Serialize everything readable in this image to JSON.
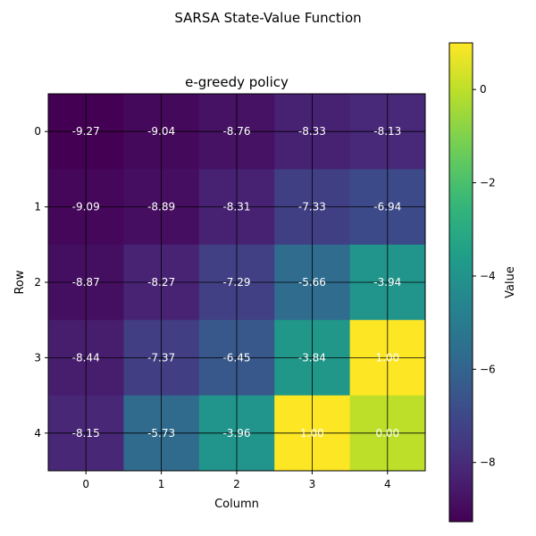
{
  "chart_data": {
    "type": "heatmap",
    "suptitle": "SARSA State-Value Function",
    "title": "e-greedy policy",
    "xlabel": "Column",
    "ylabel": "Row",
    "x_ticks": [
      "0",
      "1",
      "2",
      "3",
      "4"
    ],
    "y_ticks": [
      "0",
      "1",
      "2",
      "3",
      "4"
    ],
    "grid": true,
    "colormap": "viridis",
    "values": [
      [
        -9.27,
        -9.04,
        -8.76,
        -8.33,
        -8.13
      ],
      [
        -9.09,
        -8.89,
        -8.31,
        -7.33,
        -6.94
      ],
      [
        -8.87,
        -8.27,
        -7.29,
        -5.66,
        -3.94
      ],
      [
        -8.44,
        -7.37,
        -6.45,
        -3.84,
        1.0
      ],
      [
        -8.15,
        -5.73,
        -3.96,
        1.0,
        0.0
      ]
    ],
    "cell_labels": [
      [
        "-9.27",
        "-9.04",
        "-8.76",
        "-8.33",
        "-8.13"
      ],
      [
        "-9.09",
        "-8.89",
        "-8.31",
        "-7.33",
        "-6.94"
      ],
      [
        "-8.87",
        "-8.27",
        "-7.29",
        "-5.66",
        "-3.94"
      ],
      [
        "-8.44",
        "-7.37",
        "-6.45",
        "-3.84",
        "1.00"
      ],
      [
        "-8.15",
        "-5.73",
        "-3.96",
        "1.00",
        "0.00"
      ]
    ],
    "colorbar": {
      "label": "Value",
      "range": [
        -9.27,
        1.0
      ],
      "ticks": [
        0,
        -2,
        -4,
        -6,
        -8
      ],
      "tick_labels": [
        "0",
        "−2",
        "−4",
        "−6",
        "−8"
      ]
    }
  }
}
